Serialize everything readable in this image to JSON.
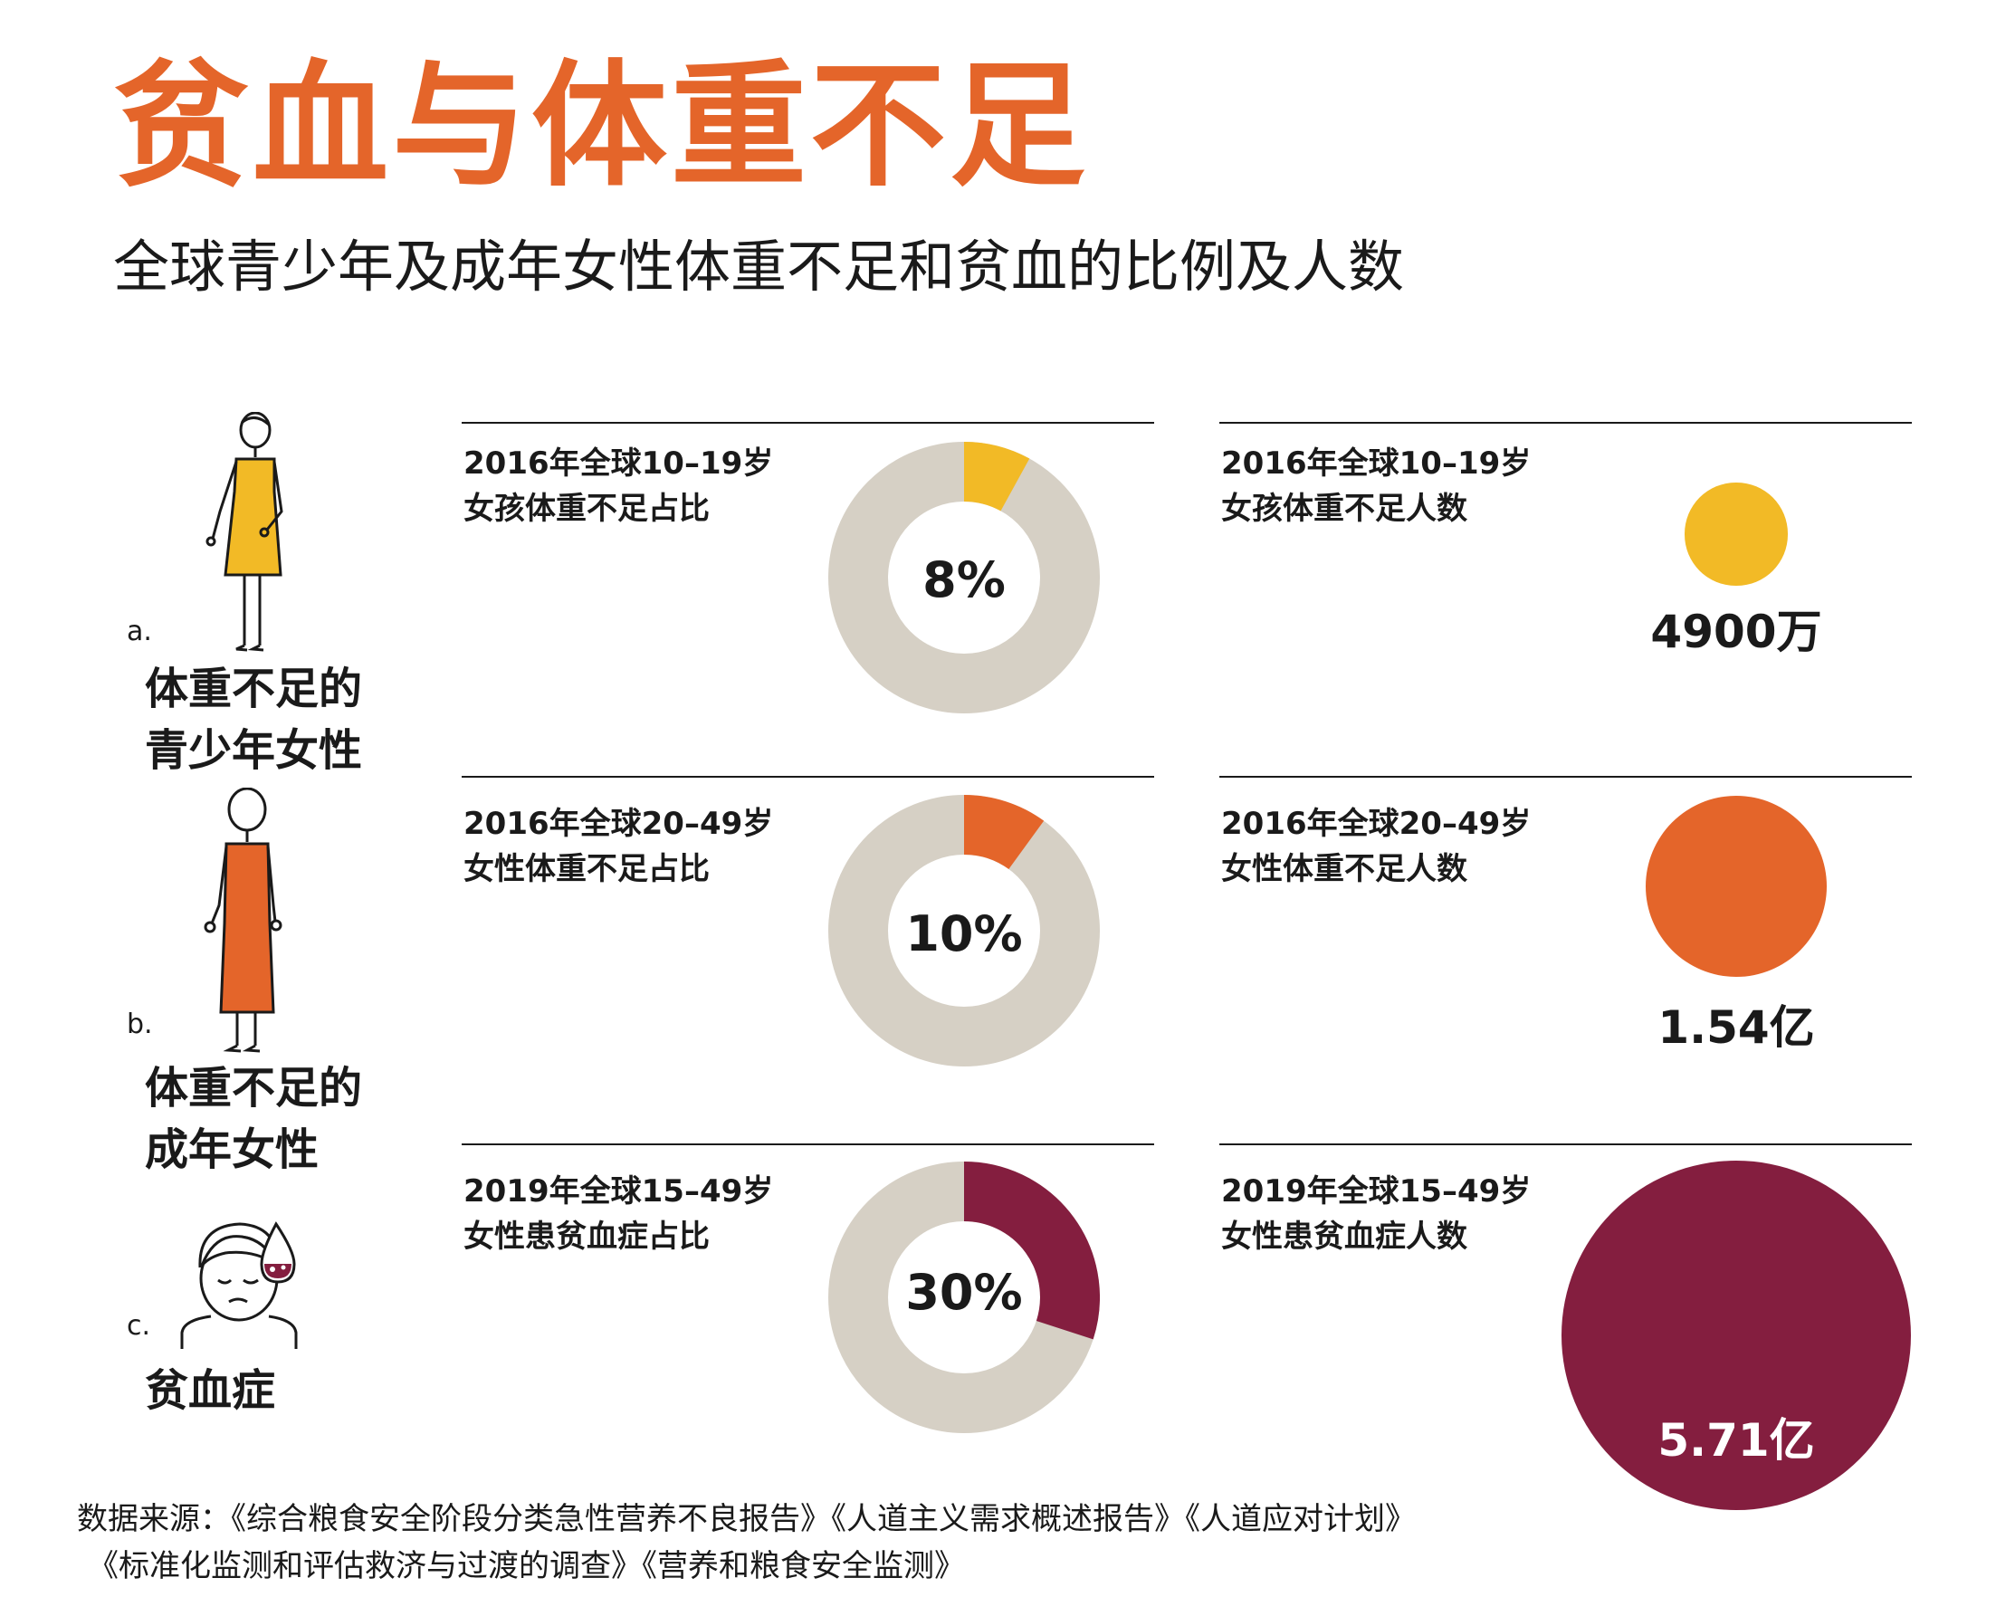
{
  "title": "贫血与体重不足",
  "subtitle": "全球青少年及成年女性体重不足和贫血的比例及人数",
  "colors": {
    "track": "#D6D0C5",
    "adolescent": "#F2BA26",
    "adult": "#E4652A",
    "anemia": "#841E3F",
    "title": "#E4652A"
  },
  "rows": [
    {
      "letter": "a.",
      "label_line1": "体重不足的",
      "label_line2": "青少年女性",
      "share_label_line1": "2016年全球10–19岁",
      "share_label_line2": "女孩体重不足占比",
      "count_label_line1": "2016年全球10–19岁",
      "count_label_line2": "女孩体重不足人数",
      "pct_text": "8%",
      "count_text": "4900万"
    },
    {
      "letter": "b.",
      "label_line1": "体重不足的",
      "label_line2": "成年女性",
      "share_label_line1": "2016年全球20–49岁",
      "share_label_line2": "女性体重不足占比",
      "count_label_line1": "2016年全球20–49岁",
      "count_label_line2": "女性体重不足人数",
      "pct_text": "10%",
      "count_text": "1.54亿"
    },
    {
      "letter": "c.",
      "label_line1": "贫血症",
      "label_line2": "",
      "share_label_line1": "2019年全球15–49岁",
      "share_label_line2": "女性患贫血症占比",
      "count_label_line1": "2019年全球15–49岁",
      "count_label_line2": "女性患贫血症人数",
      "pct_text": "30%",
      "count_text": "5.71亿"
    }
  ],
  "chart_data": [
    {
      "type": "pie",
      "title": "",
      "categories": [
        "2016年全球10–19岁女孩体重不足占比",
        "2016年全球20–49岁女性体重不足占比",
        "2019年全球15–49岁女性患贫血症占比"
      ],
      "values": [
        8,
        10,
        30
      ],
      "unit": "%",
      "colors": [
        "#F2BA26",
        "#E4652A",
        "#841E3F"
      ]
    },
    {
      "type": "scatter",
      "title": "",
      "categories": [
        "2016年全球10–19岁女孩体重不足人数",
        "2016年全球20–49岁女性体重不足人数",
        "2019年全球15–49岁女性患贫血症人数"
      ],
      "values": [
        49000000,
        154000000,
        571000000
      ],
      "colors": [
        "#F2BA26",
        "#E4652A",
        "#841E3F"
      ]
    }
  ],
  "source_line1": "数据来源：《综合粮食安全阶段分类急性营养不良报告》《人道主义需求概述报告》《人道应对计划》",
  "source_line2": "《标准化监测和评估救济与过渡的调查》《营养和粮食安全监测》"
}
